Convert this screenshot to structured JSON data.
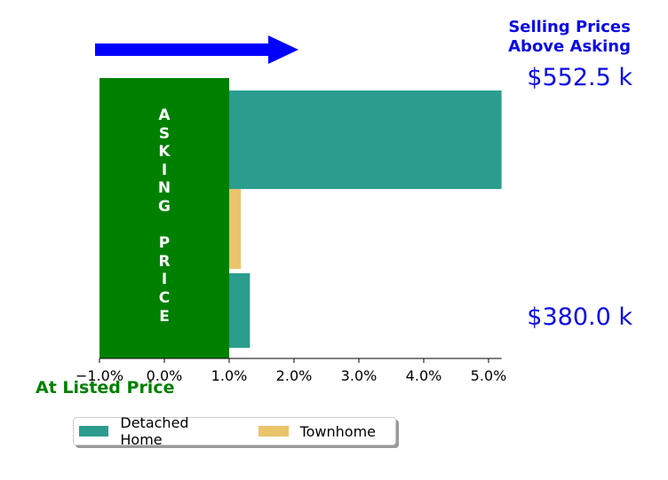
{
  "chart_data": {
    "type": "bar",
    "orientation": "horizontal",
    "xlim": [
      -1.0,
      5.2
    ],
    "x_ticks": [
      "−1.0%",
      "0.0%",
      "1.0%",
      "2.0%",
      "3.0%",
      "4.0%",
      "5.0%"
    ],
    "x_tick_values": [
      -1.0,
      0.0,
      1.0,
      2.0,
      3.0,
      4.0,
      5.0
    ],
    "base": 1.0,
    "series": [
      {
        "name": "Detached Home",
        "color": "#2a9d8f",
        "bars": [
          {
            "end": 5.2
          },
          {
            "end": 1.32
          }
        ]
      },
      {
        "name": "Townhome",
        "color": "#e9c46a",
        "bars": [
          {
            "end": 1.18
          }
        ]
      }
    ],
    "asking_block": {
      "from": -1.0,
      "to": 1.0,
      "color": "#008000",
      "label": "A\nS\nK\nI\nN\nG\n\nP\nR\nI\nC\nE"
    },
    "arrow": {
      "color": "#0000ff",
      "direction": "right"
    },
    "annotations": {
      "top": "Selling Prices\nAbove Asking",
      "price_high": "$552.5 k",
      "price_low": "$380.0 k",
      "listed": "At Listed Price"
    },
    "legend": {
      "location": "bottom",
      "entries": [
        "Detached Home",
        "Townhome"
      ]
    },
    "grid": false
  }
}
